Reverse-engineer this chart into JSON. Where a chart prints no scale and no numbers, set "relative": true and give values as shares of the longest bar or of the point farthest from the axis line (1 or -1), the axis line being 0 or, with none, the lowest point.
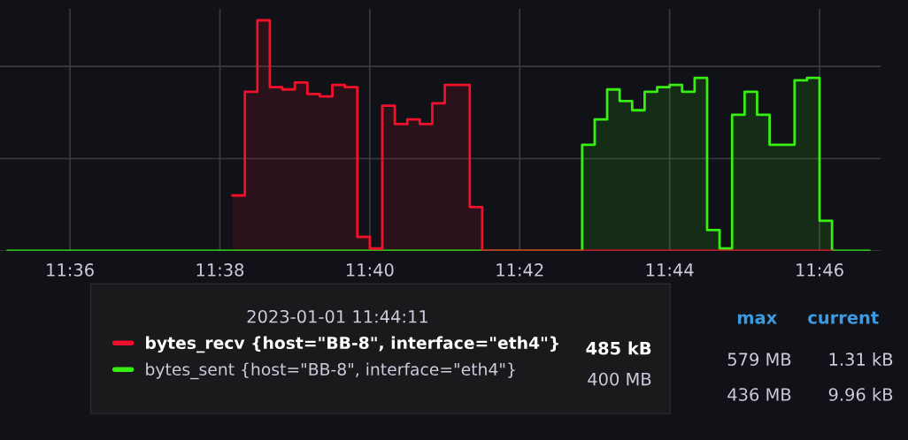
{
  "chart_data": {
    "type": "step",
    "relative": true,
    "grid": true,
    "legend": "bottom",
    "tick_labels": "x",
    "legend_title": "2023-01-01 11:44:11",
    "xlim": [
      11.584444,
      11.780278
    ],
    "xticks": [
      {
        "value": 11.6,
        "label": "11:36"
      },
      {
        "value": 11.633333,
        "label": "11:38"
      },
      {
        "value": 11.666667,
        "label": "11:40"
      },
      {
        "value": 11.7,
        "label": "11:42"
      },
      {
        "value": 11.733333,
        "label": "11:44"
      },
      {
        "value": 11.766667,
        "label": "11:46"
      }
    ],
    "series": [
      {
        "name": "bytes_recv {host=\"BB-8\", interface=\"eth4\"}",
        "color": "#f2102a",
        "x": [
          11.636111,
          11.638889,
          11.641667,
          11.644444,
          11.647222,
          11.65,
          11.652778,
          11.655556,
          11.658333,
          11.661111,
          11.663889,
          11.666667,
          11.669444,
          11.672222,
          11.675,
          11.677778,
          11.680556,
          11.683333,
          11.686111,
          11.688889,
          11.691667,
          11.769444
        ],
        "values": [
          0.24,
          0.69,
          1,
          0.71,
          0.7,
          0.73,
          0.68,
          0.67,
          0.72,
          0.71,
          0.06,
          0.01,
          0.63,
          0.55,
          0.57,
          0.55,
          0.64,
          0.72,
          0.72,
          0.19,
          0,
          0
        ]
      },
      {
        "name": "bytes_sent {host=\"BB-8\", interface=\"eth4\"}",
        "color": "#37f012",
        "x": [
          11.586111,
          11.713889,
          11.716667,
          11.719444,
          11.722222,
          11.725,
          11.727778,
          11.730556,
          11.733333,
          11.736111,
          11.738889,
          11.741667,
          11.744444,
          11.747222,
          11.75,
          11.752778,
          11.755556,
          11.758333,
          11.761111,
          11.763889,
          11.766667,
          11.769444,
          11.777778
        ],
        "values": [
          0,
          0.46,
          0.57,
          0.7,
          0.65,
          0.61,
          0.69,
          0.71,
          0.72,
          0.69,
          0.75,
          0.09,
          0.01,
          0.59,
          0.69,
          0.59,
          0.46,
          0.46,
          0.74,
          0.75,
          0.13,
          0,
          0
        ]
      }
    ],
    "annotations": [
      "485 kB",
      "400 MB",
      "max",
      "current",
      "579 MB",
      "1.31 kB",
      "436 MB",
      "9.96 kB"
    ]
  }
}
